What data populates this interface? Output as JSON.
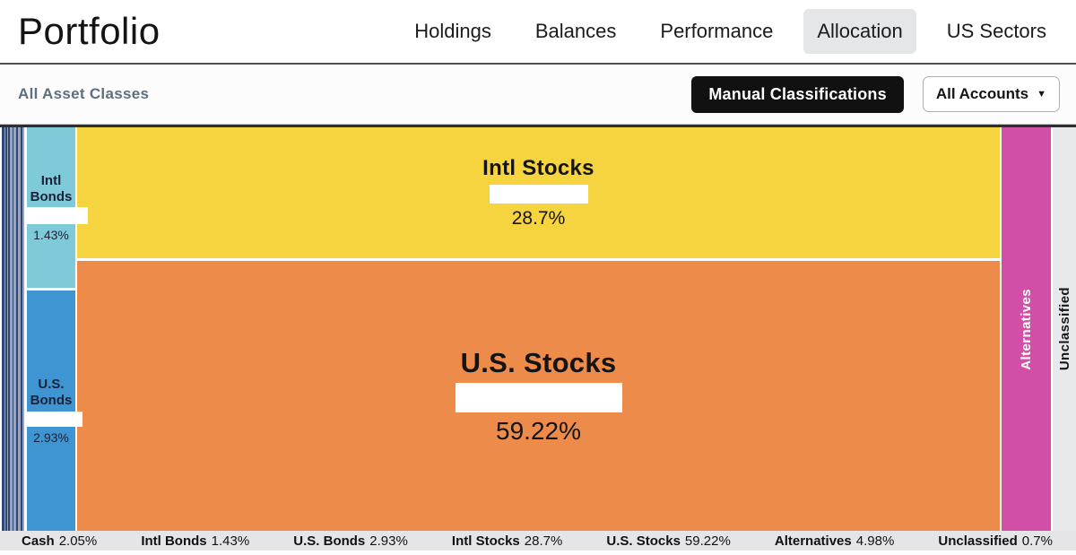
{
  "header": {
    "title": "Portfolio",
    "nav": [
      {
        "label": "Holdings"
      },
      {
        "label": "Balances"
      },
      {
        "label": "Performance"
      },
      {
        "label": "Allocation",
        "active": true
      },
      {
        "label": "US Sectors"
      }
    ]
  },
  "toolbar": {
    "breadcrumb": "All Asset Classes",
    "manual_button": "Manual Classifications",
    "accounts_button": "All Accounts",
    "caret_icon": "▼"
  },
  "chart_data": {
    "type": "treemap",
    "title": "Portfolio allocation by asset class",
    "segments": [
      {
        "name": "Cash",
        "percent": "2.05%",
        "value": 2.05,
        "color": "#2d4672"
      },
      {
        "name": "Intl Bonds",
        "percent": "1.43%",
        "value": 1.43,
        "color": "#7fcad8"
      },
      {
        "name": "U.S. Bonds",
        "percent": "2.93%",
        "value": 2.93,
        "color": "#3e95d1"
      },
      {
        "name": "Intl Stocks",
        "percent": "28.7%",
        "value": 28.7,
        "color": "#f5d440"
      },
      {
        "name": "U.S. Stocks",
        "percent": "59.22%",
        "value": 59.22,
        "color": "#ed8b4a"
      },
      {
        "name": "Alternatives",
        "percent": "4.98%",
        "value": 4.98,
        "color": "#d14fa7"
      },
      {
        "name": "Unclassified",
        "percent": "0.7%",
        "value": 0.7,
        "color": "#e7e9ed"
      }
    ],
    "legend_position": "bottom"
  }
}
